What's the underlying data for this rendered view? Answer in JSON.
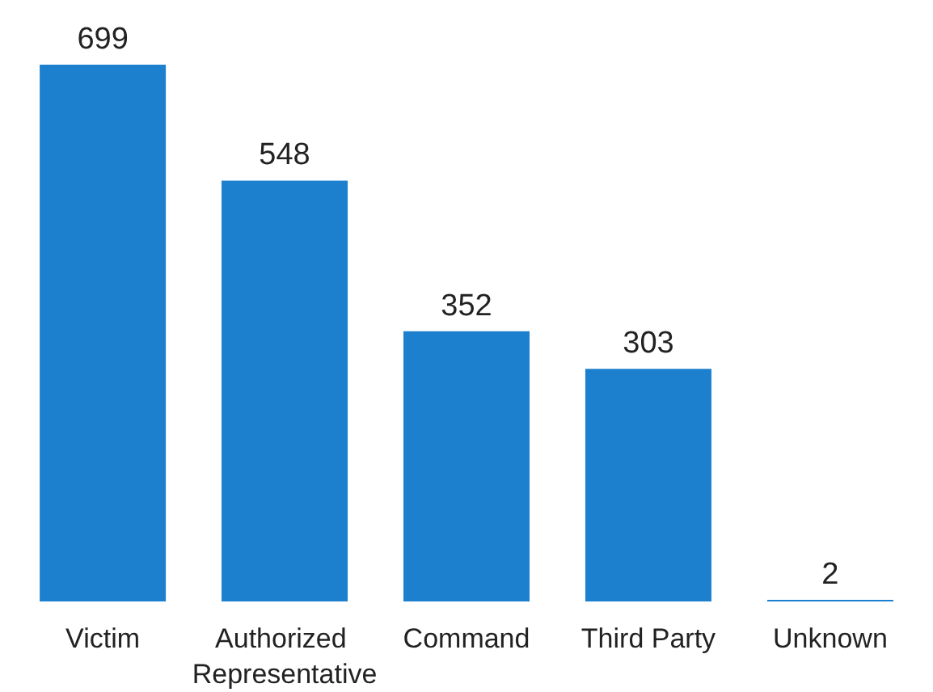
{
  "chart_data": {
    "type": "bar",
    "categories": [
      "Victim",
      "Authorized Representative",
      "Command",
      "Third Party",
      "Unknown"
    ],
    "values": [
      699,
      548,
      352,
      303,
      2
    ],
    "color": "#1c80cf",
    "data_labels": true
  }
}
